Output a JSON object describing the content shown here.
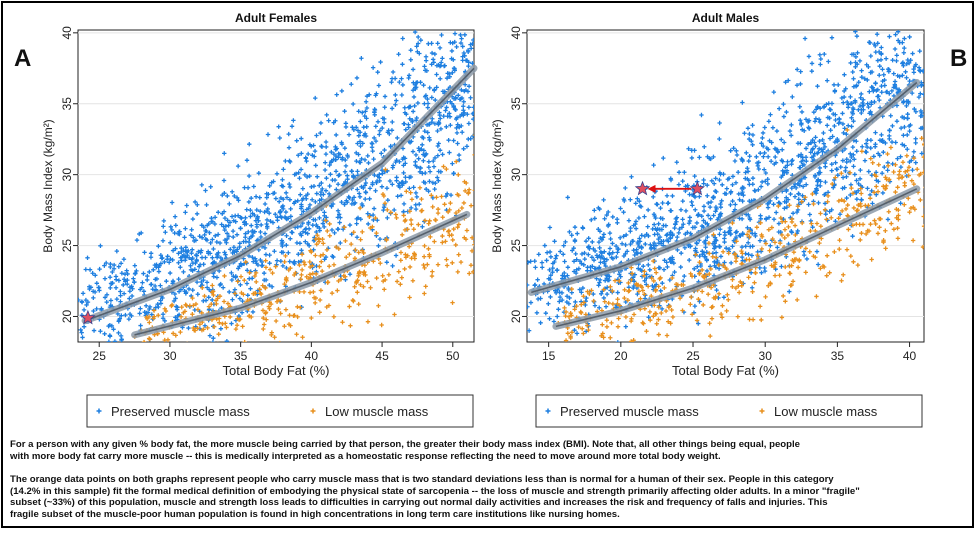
{
  "panel_letters": {
    "left": "A",
    "right": "B"
  },
  "legend": {
    "preserved": "Preserved muscle mass",
    "low": "Low muscle mass"
  },
  "colors": {
    "preserved": "#1e7fe0",
    "low": "#e8901e",
    "fit": "#7f8fa0",
    "marker": "#e05060",
    "arrow": "#dd1111"
  },
  "chart_data": [
    {
      "type": "scatter",
      "title": "Adult Females",
      "xlabel": "Total Body Fat (%)",
      "ylabel": "Body Mass Index (kg/m²)",
      "xlim": [
        23.5,
        51.5
      ],
      "ylim": [
        18.2,
        40.2
      ],
      "xticks": [
        25,
        30,
        35,
        40,
        45,
        50
      ],
      "yticks": [
        20,
        25,
        30,
        35,
        40
      ],
      "series": [
        {
          "name": "Preserved muscle mass",
          "fit": [
            [
              24,
              19.7
            ],
            [
              30,
              21.9
            ],
            [
              35,
              24.3
            ],
            [
              40,
              27.3
            ],
            [
              45,
              30.8
            ],
            [
              51.5,
              37.5
            ]
          ]
        },
        {
          "name": "Low muscle mass",
          "fit": [
            [
              27.5,
              18.7
            ],
            [
              35,
              20.6
            ],
            [
              40,
              22.4
            ],
            [
              45,
              24.5
            ],
            [
              51,
              27.2
            ]
          ]
        }
      ],
      "highlight_points": [
        {
          "x": 24.2,
          "y": 19.9
        }
      ]
    },
    {
      "type": "scatter",
      "title": "Adult Males",
      "xlabel": "Total Body Fat (%)",
      "ylabel": "Body Mass Index (kg/m²)",
      "xlim": [
        13.5,
        41
      ],
      "ylim": [
        18.2,
        40.2
      ],
      "xticks": [
        15,
        20,
        25,
        30,
        35,
        40
      ],
      "yticks": [
        20,
        25,
        30,
        35,
        40
      ],
      "series": [
        {
          "name": "Preserved muscle mass",
          "fit": [
            [
              13.8,
              21.7
            ],
            [
              20,
              23.5
            ],
            [
              25,
              25.5
            ],
            [
              30,
              28.3
            ],
            [
              35,
              31.8
            ],
            [
              40.5,
              36.5
            ]
          ]
        },
        {
          "name": "Low muscle mass",
          "fit": [
            [
              15.5,
              19.3
            ],
            [
              20,
              20.4
            ],
            [
              25,
              22.0
            ],
            [
              30,
              24.0
            ],
            [
              35,
              26.4
            ],
            [
              40.5,
              29
            ]
          ]
        }
      ],
      "highlight_points": [
        {
          "x": 21.5,
          "y": 29
        },
        {
          "x": 25.3,
          "y": 29
        }
      ],
      "arrow": {
        "from": [
          25.3,
          29
        ],
        "to": [
          21.5,
          29
        ]
      }
    }
  ],
  "caption": {
    "p1_line1": "For a person with any given % body fat, the more muscle being carried by that person, the greater their body mass index (BMI).  Note that, all other things being equal, people",
    "p1_line2": "with more body fat carry more muscle -- this is medically interpreted as a homeostatic response reflecting the need to move around more total body weight.",
    "p2_line1": "The orange data points on both graphs represent people who carry muscle mass that is two standard deviations less than is normal for a human of their sex.  People in this category",
    "p2_line2": "(14.2% in this sample) fit the formal medical definition of embodying the physical state of sarcopenia -- the loss of muscle and strength primarily affecting older adults.  In a minor \"fragile\"",
    "p2_line3": "subset (~33%) of this population, muscle and strength loss leads to difficulties in carrying out normal daily activities and increases the risk and frequency of falls and injuries. This",
    "p2_line4": "fragile subset of the muscle-poor human population is found in high concentrations in long term care institutions like nursing homes."
  }
}
